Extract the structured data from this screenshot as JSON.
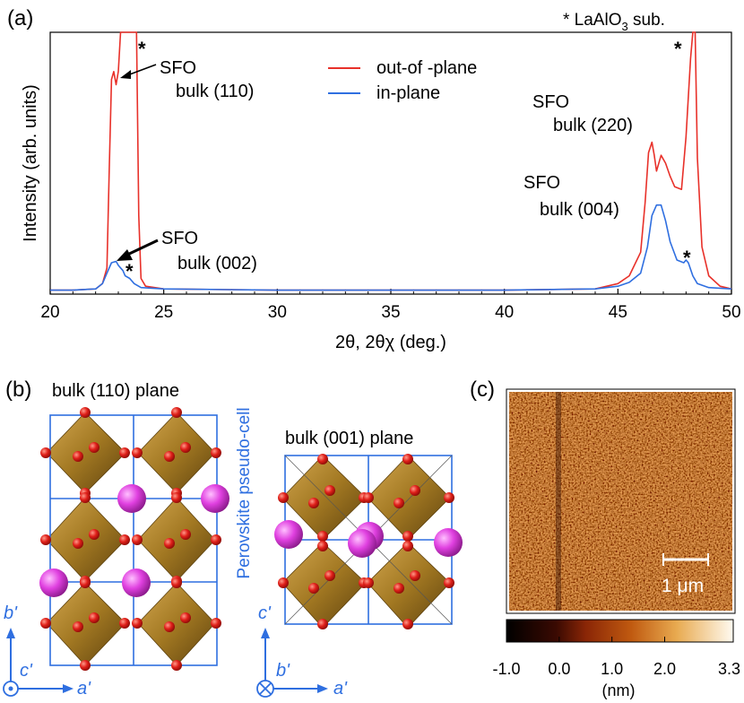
{
  "panel_a": {
    "label": "(a)",
    "substrate_note": "* LaAlO",
    "substrate_note_sub": "3",
    "substrate_note_tail": " sub.",
    "legend": {
      "out_of_plane": "out-of -plane",
      "in_plane": "in-plane"
    },
    "annotations": {
      "sfo_110_line1": "SFO",
      "sfo_110_line2": "bulk (110)",
      "sfo_002_line1": "SFO",
      "sfo_002_line2": "bulk (002)",
      "sfo_220_line1": "SFO",
      "sfo_220_line2": "bulk (220)",
      "sfo_004_line1": "SFO",
      "sfo_004_line2": "bulk (004)",
      "star": "*"
    },
    "colors": {
      "out_of_plane": "#e8312a",
      "in_plane": "#2f6fe0"
    }
  },
  "chart_data": {
    "type": "line",
    "title": "",
    "xlabel": "2θ, 2θχ (deg.)",
    "ylabel": "Intensity (arb. units)",
    "xlim": [
      20,
      50
    ],
    "ylim": [
      0,
      100
    ],
    "xticks": [
      "20",
      "25",
      "30",
      "35",
      "40",
      "45",
      "50"
    ],
    "series": [
      {
        "name": "out-of -plane",
        "x": [
          20,
          21,
          22,
          22.3,
          22.5,
          22.6,
          22.7,
          22.8,
          22.9,
          23.0,
          23.1,
          23.2,
          23.3,
          23.5,
          23.7,
          23.8,
          23.9,
          24.0,
          24.2,
          25,
          30,
          40,
          44,
          45,
          45.5,
          46.0,
          46.2,
          46.35,
          46.5,
          46.6,
          46.7,
          46.9,
          47.1,
          47.3,
          47.5,
          47.8,
          48.0,
          48.2,
          48.3,
          48.4,
          48.5,
          48.7,
          49.0,
          49.5,
          50
        ],
        "y": [
          1.5,
          1.5,
          2,
          4,
          10,
          48,
          82,
          85,
          80,
          85,
          100,
          100,
          100,
          100,
          100,
          100,
          30,
          6,
          3,
          2,
          1.5,
          1.5,
          2,
          4,
          7,
          16,
          35,
          54,
          58,
          53,
          47,
          53,
          50,
          45,
          41,
          40,
          60,
          90,
          100,
          100,
          52,
          18,
          7,
          3,
          2
        ]
      },
      {
        "name": "in-plane",
        "x": [
          20,
          21,
          22,
          22.3,
          22.5,
          22.7,
          22.9,
          23.0,
          23.1,
          23.2,
          23.3,
          23.5,
          23.7,
          24.0,
          25,
          30,
          40,
          44,
          45,
          45.5,
          46.0,
          46.3,
          46.5,
          46.7,
          46.9,
          47.1,
          47.3,
          47.6,
          47.9,
          48.0,
          48.1,
          48.3,
          48.5,
          49,
          50
        ],
        "y": [
          1.5,
          1.5,
          2,
          4,
          8,
          12,
          12.5,
          11,
          10,
          9,
          7,
          6,
          4,
          2.5,
          2,
          1.5,
          1.5,
          2,
          3,
          4.5,
          8,
          18,
          30,
          34,
          34,
          28,
          20,
          13,
          12,
          13,
          12,
          7,
          4,
          2.5,
          2
        ]
      }
    ]
  },
  "panel_b": {
    "label": "(b)",
    "plane_110": "bulk (110) plane",
    "plane_001": "bulk (001) plane",
    "pseudo_cell": "Perovskite pseudo-cell",
    "axes_left": {
      "up": "b'",
      "out": "c'",
      "right": "a'"
    },
    "axes_right": {
      "up": "c'",
      "into": "b'",
      "right": "a'"
    }
  },
  "panel_c": {
    "label": "(c)",
    "scale_bar": "1 μm",
    "colorbar_ticks": [
      "-1.0",
      "0.0",
      "1.0",
      "2.0",
      "3.3"
    ],
    "colorbar_unit": "(nm)"
  }
}
